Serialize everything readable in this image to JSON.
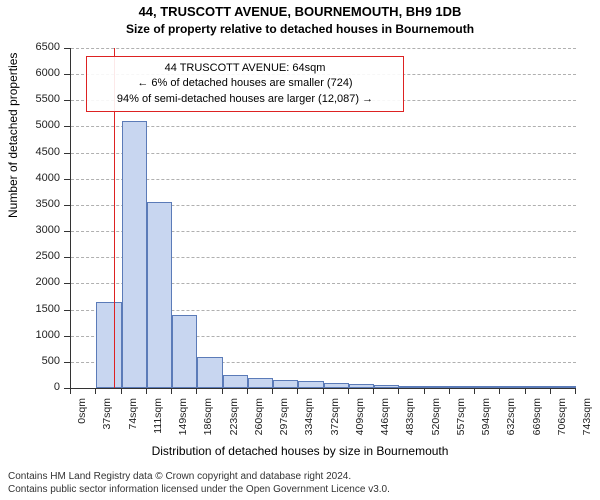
{
  "title_main": "44, TRUSCOTT AVENUE, BOURNEMOUTH, BH9 1DB",
  "title_sub": "Size of property relative to detached houses in Bournemouth",
  "y_axis_label": "Number of detached properties",
  "x_axis_label": "Distribution of detached houses by size in Bournemouth",
  "footer_line1": "Contains HM Land Registry data © Crown copyright and database right 2024.",
  "footer_line2": "Contains public sector information licensed under the Open Government Licence v3.0.",
  "annotation": {
    "line1": "44 TRUSCOTT AVENUE: 64sqm",
    "line2": "← 6% of detached houses are smaller (724)",
    "line3": "94% of semi-detached houses are larger (12,087) →"
  },
  "chart": {
    "type": "histogram",
    "ylim": [
      0,
      6500
    ],
    "ytick_step": 500,
    "x_categories": [
      0,
      37,
      74,
      111,
      149,
      186,
      223,
      260,
      297,
      334,
      372,
      409,
      446,
      483,
      520,
      557,
      594,
      632,
      669,
      706,
      743
    ],
    "x_suffix": "sqm",
    "bar_values": [
      0,
      1650,
      5100,
      3550,
      1400,
      600,
      250,
      200,
      150,
      130,
      100,
      80,
      60,
      30,
      20,
      15,
      10,
      8,
      5,
      3
    ],
    "vline_x_value": 64,
    "bar_fill": "#c8d6f0",
    "bar_border": "#5b7bb8",
    "grid_color": "#b0b0b0",
    "vline_color": "#d22",
    "background": "#ffffff",
    "title_fontsize": 13,
    "label_fontsize": 12,
    "tick_fontsize": 11,
    "footer_fontsize": 10
  }
}
